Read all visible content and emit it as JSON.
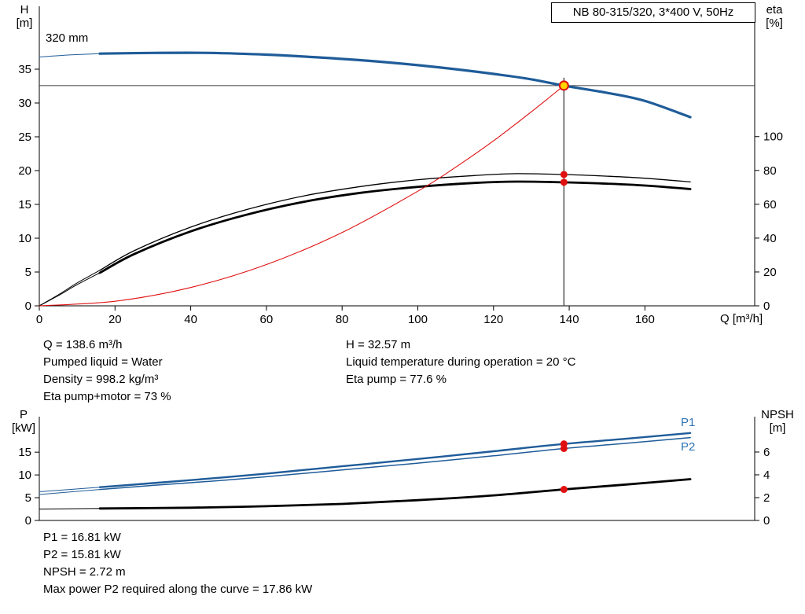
{
  "title_box": "NB 80-315/320, 3*400 V, 50Hz",
  "impeller_label": "320 mm",
  "axes_labels": {
    "top_left_1": "H",
    "top_left_2": "[m]",
    "top_right_1": "eta",
    "top_right_2": "[%]",
    "x_label": "Q [m³/h]",
    "bottom_left_1": "P",
    "bottom_left_2": "[kW]",
    "bottom_right_1": "NPSH",
    "bottom_right_2": "[m]"
  },
  "mid_annotations": {
    "left": [
      "Q = 138.6 m³/h",
      "Pumped liquid = Water",
      "Density = 998.2 kg/m³",
      "Eta pump+motor = 73 %"
    ],
    "right": [
      "H = 32.57 m",
      "Liquid temperature during operation = 20 °C",
      "Eta pump = 77.6 %"
    ]
  },
  "bottom_annotations": [
    "P1 = 16.81 kW",
    "P2 = 15.81 kW",
    "NPSH = 2.72 m",
    "Max power P2 required along the curve = 17.86 kW"
  ],
  "colors": {
    "curve_blue": "#1f5c99",
    "marker_red": "#e01010",
    "marker_yellow": "#ffd400",
    "label_blue": "#2e74b5",
    "duty_line": "#3c3c3c"
  },
  "chart_data": [
    {
      "type": "line",
      "title": "NB 80-315/320, 3*400 V, 50Hz",
      "xlabel": "Q [m³/h]",
      "ylabel_left": "H [m]",
      "ylabel_right": "eta [%]",
      "x_range": [
        0,
        189
      ],
      "x_ticks": [
        0,
        20,
        40,
        60,
        80,
        100,
        120,
        140,
        160
      ],
      "y_left_range": [
        0,
        44.3
      ],
      "y_left_ticks": [
        0,
        5,
        10,
        15,
        20,
        25,
        30,
        35
      ],
      "y_right_range": [
        0,
        177
      ],
      "y_right_ticks": [
        0,
        20,
        40,
        60,
        80,
        100
      ],
      "grid": false,
      "series": [
        {
          "name": "H 320 mm",
          "axis": "left",
          "color": "#1f5c99",
          "width": 3.2,
          "lead_points": [
            [
              0,
              36.8
            ],
            [
              8,
              37.1
            ],
            [
              16,
              37.3
            ]
          ],
          "points": [
            [
              16,
              37.3
            ],
            [
              30,
              37.4
            ],
            [
              45,
              37.4
            ],
            [
              60,
              37.15
            ],
            [
              75,
              36.7
            ],
            [
              90,
              36.1
            ],
            [
              105,
              35.3
            ],
            [
              120,
              34.3
            ],
            [
              130,
              33.5
            ],
            [
              138.6,
              32.57
            ],
            [
              150,
              31.5
            ],
            [
              160,
              30.3
            ],
            [
              172,
              27.9
            ]
          ]
        },
        {
          "name": "Eta pump",
          "axis": "right",
          "color": "#000000",
          "width": 1.3,
          "lead_points": [
            [
              0,
              0
            ],
            [
              5,
              6.5
            ],
            [
              10,
              13.5
            ],
            [
              16,
              21
            ]
          ],
          "points": [
            [
              16,
              21
            ],
            [
              25,
              32.5
            ],
            [
              40,
              46.5
            ],
            [
              55,
              57
            ],
            [
              70,
              65
            ],
            [
              85,
              70.5
            ],
            [
              100,
              74.5
            ],
            [
              115,
              77
            ],
            [
              126,
              78.1
            ],
            [
              138.6,
              77.6
            ],
            [
              150,
              76.6
            ],
            [
              160,
              75.4
            ],
            [
              172,
              73.2
            ]
          ]
        },
        {
          "name": "Eta pump+motor",
          "axis": "right",
          "color": "#000000",
          "width": 2.8,
          "lead_points": [
            [
              0,
              0
            ],
            [
              5,
              6
            ],
            [
              10,
              12.5
            ],
            [
              16,
              19.5
            ]
          ],
          "points": [
            [
              16,
              19.5
            ],
            [
              25,
              30.5
            ],
            [
              40,
              44
            ],
            [
              55,
              54
            ],
            [
              70,
              61.5
            ],
            [
              85,
              66.8
            ],
            [
              100,
              70.3
            ],
            [
              115,
              72.6
            ],
            [
              126,
              73.4
            ],
            [
              138.6,
              73.0
            ],
            [
              150,
              72.2
            ],
            [
              160,
              71.1
            ],
            [
              172,
              69.0
            ]
          ]
        },
        {
          "name": "System curve to duty point",
          "axis": "left",
          "color": "#e01010",
          "width": 1.1,
          "points": [
            [
              0,
              0
            ],
            [
              20,
              0.68
            ],
            [
              40,
              2.71
            ],
            [
              60,
              6.1
            ],
            [
              80,
              10.85
            ],
            [
              100,
              16.95
            ],
            [
              110,
              20.5
            ],
            [
              120,
              24.4
            ],
            [
              130,
              28.7
            ],
            [
              138.6,
              32.57
            ]
          ]
        }
      ],
      "duty_point": {
        "Q": 138.6,
        "H": 32.57,
        "eta_pump": 77.6,
        "eta_pump_motor": 73.0
      }
    },
    {
      "type": "line",
      "title": "Power and NPSH",
      "xlabel": "",
      "ylabel_left": "P [kW]",
      "ylabel_right": "NPSH [m]",
      "x_range": [
        0,
        189
      ],
      "x_ticks": [],
      "y_left_range": [
        0,
        22.8
      ],
      "y_left_ticks": [
        0,
        5,
        10,
        15
      ],
      "y_right_range": [
        0,
        9.1
      ],
      "y_right_ticks": [
        0,
        2,
        4,
        6
      ],
      "grid": false,
      "series": [
        {
          "name": "P1",
          "axis": "left",
          "color": "#1f5c99",
          "width": 2.4,
          "lead_points": [
            [
              0,
              6.3
            ],
            [
              16,
              7.3
            ]
          ],
          "points": [
            [
              16,
              7.3
            ],
            [
              30,
              8.2
            ],
            [
              45,
              9.2
            ],
            [
              60,
              10.3
            ],
            [
              80,
              11.9
            ],
            [
              100,
              13.5
            ],
            [
              120,
              15.2
            ],
            [
              138.6,
              16.81
            ],
            [
              155,
              17.95
            ],
            [
              172,
              19.2
            ]
          ]
        },
        {
          "name": "P2",
          "axis": "left",
          "color": "#1f5c99",
          "width": 1.5,
          "lead_points": [
            [
              0,
              5.7
            ],
            [
              16,
              6.8
            ]
          ],
          "points": [
            [
              16,
              6.8
            ],
            [
              30,
              7.7
            ],
            [
              45,
              8.6
            ],
            [
              60,
              9.6
            ],
            [
              80,
              11.1
            ],
            [
              100,
              12.6
            ],
            [
              120,
              14.2
            ],
            [
              138.6,
              15.81
            ],
            [
              155,
              16.95
            ],
            [
              172,
              18.2
            ]
          ]
        },
        {
          "name": "NPSH",
          "axis": "right",
          "color": "#000000",
          "width": 2.8,
          "lead_points": [
            [
              0,
              1.0
            ],
            [
              16,
              1.05
            ]
          ],
          "points": [
            [
              16,
              1.05
            ],
            [
              40,
              1.12
            ],
            [
              60,
              1.25
            ],
            [
              80,
              1.45
            ],
            [
              100,
              1.78
            ],
            [
              120,
              2.2
            ],
            [
              138.6,
              2.72
            ],
            [
              155,
              3.15
            ],
            [
              172,
              3.62
            ]
          ]
        }
      ],
      "duty_markers": [
        {
          "label": "P1 duty point",
          "Q": 138.6,
          "value": 16.81,
          "axis": "left"
        },
        {
          "label": "P2 duty point",
          "Q": 138.6,
          "value": 15.81,
          "axis": "left"
        },
        {
          "label": "NPSH duty point",
          "Q": 138.6,
          "value": 2.72,
          "axis": "right"
        }
      ]
    }
  ]
}
